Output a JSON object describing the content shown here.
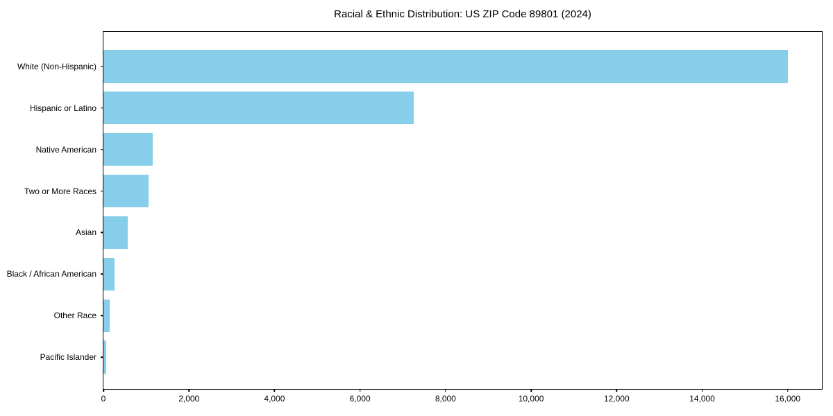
{
  "chart_data": {
    "type": "bar",
    "orientation": "horizontal",
    "title": "Racial & Ethnic Distribution: US ZIP Code 89801 (2024)",
    "categories": [
      "White (Non-Hispanic)",
      "Hispanic or Latino",
      "Native American",
      "Two or More Races",
      "Asian",
      "Black / African American",
      "Other Race",
      "Pacific Islander"
    ],
    "values": [
      16000,
      7250,
      1150,
      1050,
      570,
      260,
      140,
      70
    ],
    "xlabel": "",
    "ylabel": "",
    "xlim": [
      0,
      16800
    ],
    "x_ticks": [
      0,
      2000,
      4000,
      6000,
      8000,
      10000,
      12000,
      14000,
      16000
    ],
    "x_tick_labels": [
      "0",
      "2,000",
      "4,000",
      "6,000",
      "8,000",
      "10,000",
      "12,000",
      "14,000",
      "16,000"
    ],
    "grid": false,
    "legend": "none",
    "bar_color": "#87CEEB",
    "background_color": "#ffffff",
    "text_color": "#000000"
  }
}
